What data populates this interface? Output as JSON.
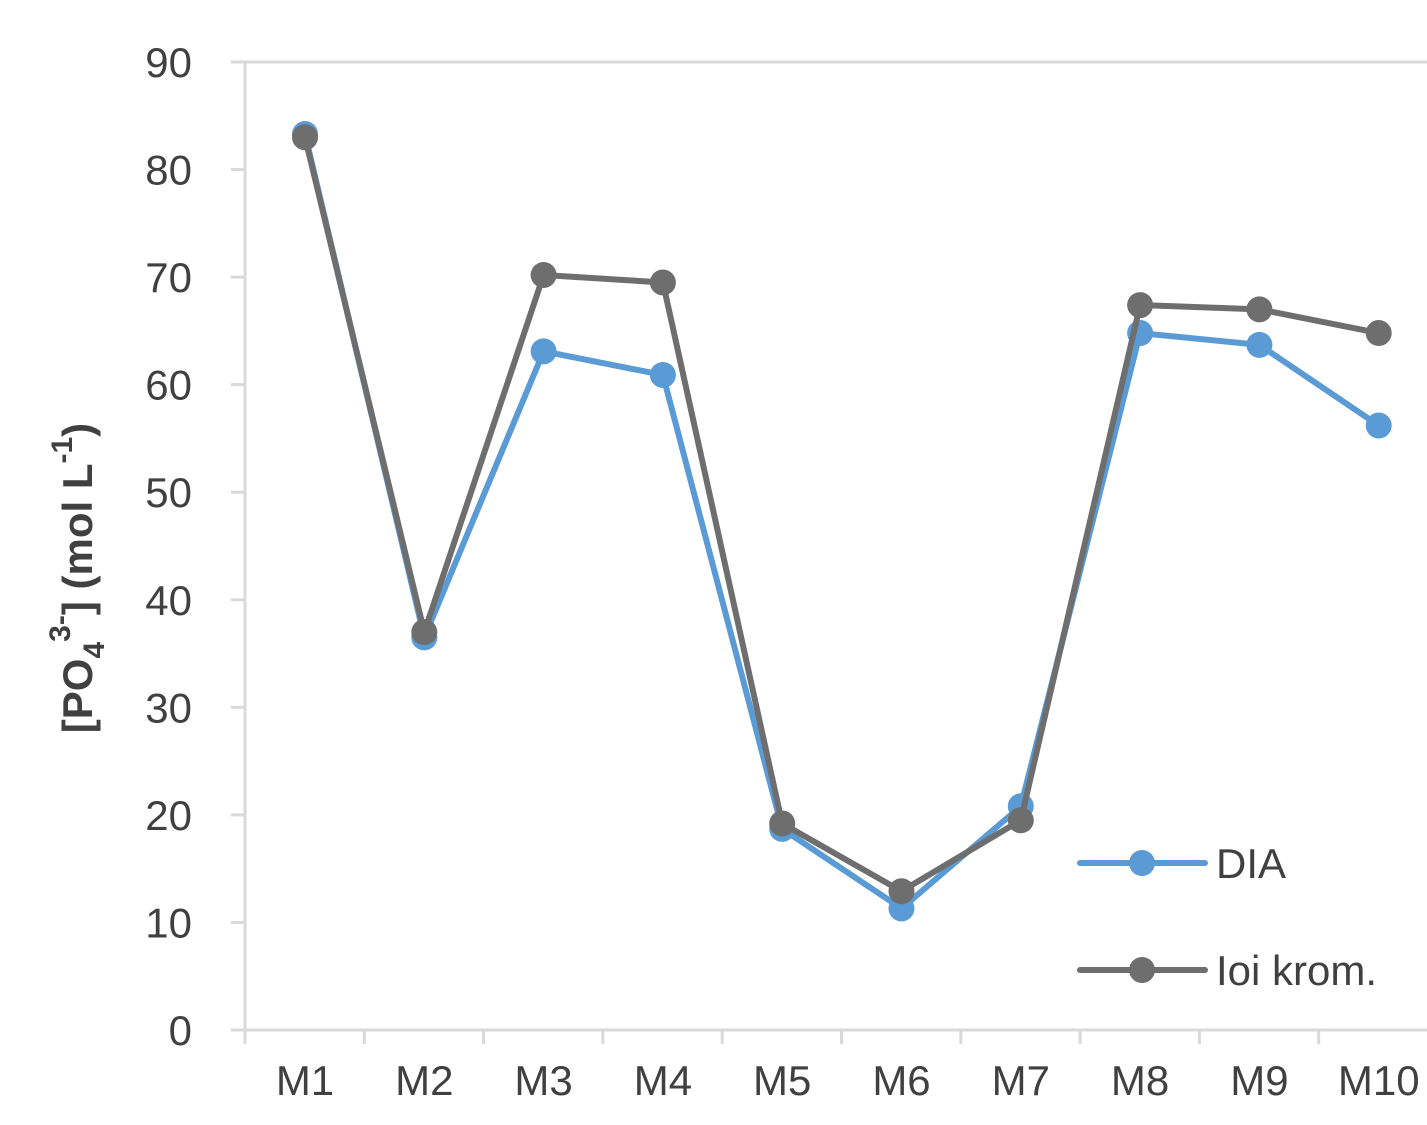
{
  "chart_data": {
    "type": "line",
    "categories": [
      "M1",
      "M2",
      "M3",
      "M4",
      "M5",
      "M6",
      "M7",
      "M8",
      "M9",
      "M10"
    ],
    "series": [
      {
        "name": "DIA",
        "color": "#5b9bd5",
        "values": [
          83.3,
          36.5,
          63.1,
          60.9,
          18.7,
          11.3,
          20.8,
          64.8,
          63.7,
          56.2
        ]
      },
      {
        "name": "Ioi krom.",
        "color": "#6e6e6e",
        "values": [
          83.0,
          37.0,
          70.2,
          69.5,
          19.2,
          12.9,
          19.5,
          67.4,
          67.0,
          64.8
        ]
      }
    ],
    "ylabel": {
      "open": "[PO",
      "sub": "4",
      "sup": "3-",
      "mid": "] (mol L",
      "sup2": "-1",
      "close": ")"
    },
    "ylim": [
      0,
      90
    ],
    "yticks": [
      0,
      10,
      20,
      30,
      40,
      50,
      60,
      70,
      80,
      90
    ],
    "grid": false,
    "legend": "bottom-right",
    "axis_color": "#d9d9d9",
    "text_color": "#404040"
  }
}
